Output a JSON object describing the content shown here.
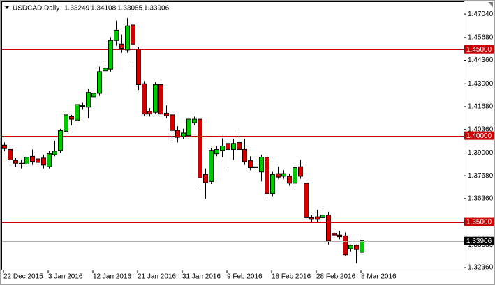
{
  "chart_data": {
    "type": "candlestick",
    "title": "USDCAD,Daily",
    "header_ohlc": [
      1.33249,
      1.34108,
      1.33085,
      1.33906
    ],
    "categories": [
      "22 Dec 2015",
      null,
      null,
      null,
      null,
      null,
      null,
      null,
      "3 Jan 2016",
      null,
      null,
      null,
      null,
      null,
      null,
      null,
      "12 Jan 2016",
      null,
      null,
      null,
      null,
      null,
      null,
      null,
      "21 Jan 2016",
      null,
      null,
      null,
      null,
      null,
      null,
      null,
      "31 Jan 2016",
      null,
      null,
      null,
      null,
      null,
      null,
      null,
      "9 Feb 2016",
      null,
      null,
      null,
      null,
      null,
      null,
      null,
      "18 Feb 2016",
      null,
      null,
      null,
      null,
      null,
      null,
      null,
      "28 Feb 2016",
      null,
      null,
      null,
      null,
      null,
      null,
      null,
      "8 Mar 2016"
    ],
    "open": [
      1.3945,
      1.392,
      1.3855,
      1.384,
      1.3835,
      1.388,
      1.3865,
      1.387,
      1.382,
      1.389,
      1.3915,
      1.4025,
      1.411,
      1.409,
      1.417,
      1.4165,
      1.4225,
      1.4245,
      1.4375,
      1.4385,
      1.455,
      1.453,
      1.4495,
      1.464,
      1.45,
      1.43,
      1.414,
      1.4135,
      1.4295,
      1.413,
      1.412,
      1.403,
      1.3995,
      1.4,
      1.4075,
      1.4095,
      1.3775,
      1.3735,
      1.3895,
      1.3915,
      1.3955,
      1.392,
      1.396,
      1.392,
      1.3855,
      1.3815,
      1.379,
      1.3875,
      1.3665,
      1.378,
      1.3765,
      1.3765,
      1.3725,
      1.382,
      1.3725,
      1.3525,
      1.353,
      1.3525,
      1.354,
      1.3435,
      1.3425,
      1.342,
      1.3345,
      1.3365,
      1.33249
    ],
    "high": [
      1.396,
      1.393,
      1.387,
      1.386,
      1.389,
      1.392,
      1.389,
      1.389,
      1.391,
      1.397,
      1.404,
      1.413,
      1.412,
      1.42,
      1.419,
      1.427,
      1.427,
      1.44,
      1.441,
      1.457,
      1.4665,
      1.4585,
      1.468,
      1.47,
      1.4515,
      1.4315,
      1.416,
      1.431,
      1.431,
      1.4175,
      1.413,
      1.4055,
      1.404,
      1.41,
      1.411,
      1.4105,
      1.381,
      1.393,
      1.394,
      1.3985,
      1.3985,
      1.398,
      1.402,
      1.398,
      1.388,
      1.384,
      1.389,
      1.39,
      1.379,
      1.382,
      1.38,
      1.378,
      1.383,
      1.386,
      1.374,
      1.354,
      1.357,
      1.358,
      1.356,
      1.348,
      1.345,
      1.344,
      1.337,
      1.337,
      1.34108
    ],
    "low": [
      1.391,
      1.384,
      1.382,
      1.381,
      1.382,
      1.383,
      1.383,
      1.381,
      1.381,
      1.388,
      1.39,
      1.4015,
      1.406,
      1.407,
      1.415,
      1.41,
      1.417,
      1.423,
      1.436,
      1.437,
      1.452,
      1.448,
      1.448,
      1.4405,
      1.4265,
      1.4115,
      1.411,
      1.4125,
      1.411,
      1.41,
      1.397,
      1.396,
      1.398,
      1.399,
      1.406,
      1.37,
      1.3635,
      1.372,
      1.388,
      1.3875,
      1.3815,
      1.386,
      1.385,
      1.383,
      1.38,
      1.379,
      1.3735,
      1.365,
      1.365,
      1.375,
      1.375,
      1.371,
      1.3715,
      1.375,
      1.351,
      1.35,
      1.35,
      1.351,
      1.337,
      1.341,
      1.34,
      1.33,
      1.333,
      1.326,
      1.33085
    ],
    "close": [
      1.3925,
      1.386,
      1.384,
      1.3835,
      1.3875,
      1.385,
      1.3845,
      1.383,
      1.3895,
      1.391,
      1.4029,
      1.412,
      1.4095,
      1.418,
      1.4175,
      1.425,
      1.4245,
      1.437,
      1.439,
      1.455,
      1.461,
      1.4505,
      1.4635,
      1.453,
      1.4295,
      1.4125,
      1.4125,
      1.4295,
      1.4125,
      1.4115,
      1.403,
      1.399,
      1.4015,
      1.4095,
      1.4095,
      1.3755,
      1.3728,
      1.3915,
      1.392,
      1.394,
      1.392,
      1.3955,
      1.392,
      1.385,
      1.3815,
      1.382,
      1.3875,
      1.3665,
      1.3775,
      1.376,
      1.378,
      1.3725,
      1.3815,
      1.3765,
      1.3525,
      1.3515,
      1.3515,
      1.354,
      1.339,
      1.3425,
      1.3415,
      1.331,
      1.3365,
      1.334,
      1.33906
    ],
    "up_color": "#00c800",
    "down_color": "#d00000",
    "ylim": [
      1.3224,
      1.4769
    ],
    "yticks": [
      {
        "value": 1.4704,
        "label": "1.47040"
      },
      {
        "value": 1.4568,
        "label": "1.45680"
      },
      {
        "value": 1.4436,
        "label": "1.44360"
      },
      {
        "value": 1.43,
        "label": "1.43000"
      },
      {
        "value": 1.4168,
        "label": "1.41680"
      },
      {
        "value": 1.4036,
        "label": "1.40360"
      },
      {
        "value": 1.39,
        "label": "1.39000"
      },
      {
        "value": 1.3768,
        "label": "1.37680"
      },
      {
        "value": 1.3636,
        "label": "1.36360"
      },
      {
        "value": 1.3368,
        "label": "1.33680"
      },
      {
        "value": 1.3236,
        "label": "1.32360"
      }
    ],
    "levels": [
      {
        "value": 1.45,
        "label": "1.45000"
      },
      {
        "value": 1.4,
        "label": "1.40000"
      },
      {
        "value": 1.35,
        "label": "1.35000"
      }
    ],
    "level_color": "#cc0000",
    "bid": 1.33906,
    "grid": false
  }
}
